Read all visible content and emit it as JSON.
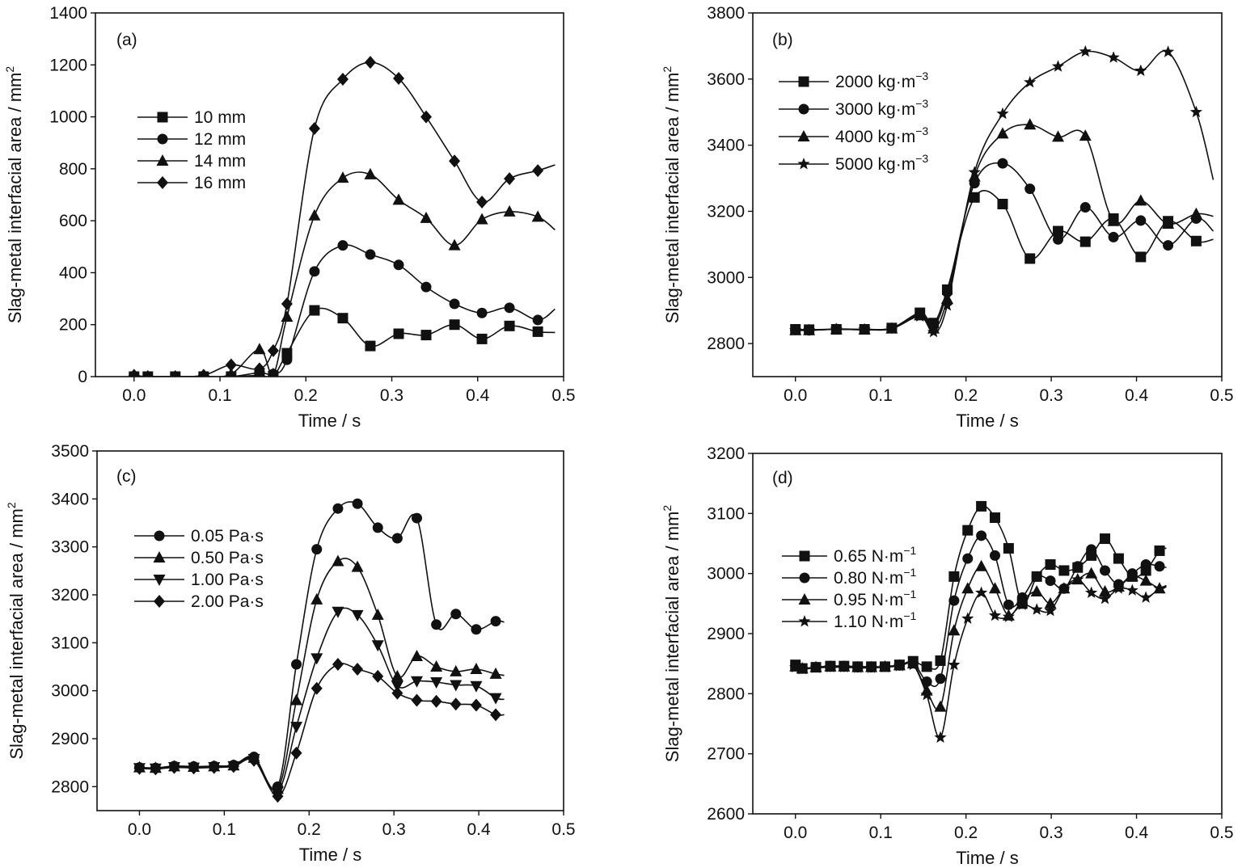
{
  "chart_data": [
    {
      "type": "line",
      "panel_label": "(a)",
      "xlabel": "Time / s",
      "ylabel": "Slag-metal interfacial area / mm",
      "ylabel_sup": "2",
      "xlim": [
        -0.045,
        0.5
      ],
      "ylim": [
        0,
        1400
      ],
      "xticks": [
        "0.0",
        "0.1",
        "0.2",
        "0.3",
        "0.4",
        "0.5"
      ],
      "yticks": [
        "0",
        "200",
        "400",
        "600",
        "800",
        "1000",
        "1200",
        "1400"
      ],
      "legend": "upper-left",
      "series": [
        {
          "name": "10 mm",
          "marker": "square",
          "x": [
            0.0,
            0.016,
            0.048,
            0.081,
            0.113,
            0.146,
            0.162,
            0.178,
            0.21,
            0.243,
            0.275,
            0.308,
            0.34,
            0.373,
            0.405,
            0.437,
            0.47,
            0.49
          ],
          "y": [
            0,
            0,
            0,
            0,
            0,
            5,
            2,
            90,
            255,
            225,
            118,
            165,
            160,
            200,
            145,
            195,
            173,
            170
          ]
        },
        {
          "name": "12 mm",
          "marker": "circle",
          "x": [
            0.0,
            0.016,
            0.048,
            0.081,
            0.113,
            0.146,
            0.162,
            0.178,
            0.21,
            0.243,
            0.275,
            0.308,
            0.34,
            0.373,
            0.405,
            0.437,
            0.47,
            0.49
          ],
          "y": [
            0,
            0,
            0,
            0,
            0,
            15,
            10,
            65,
            405,
            505,
            470,
            430,
            345,
            280,
            245,
            265,
            218,
            260
          ]
        },
        {
          "name": "14 mm",
          "marker": "triangle-up",
          "x": [
            0.0,
            0.016,
            0.048,
            0.081,
            0.113,
            0.146,
            0.162,
            0.178,
            0.21,
            0.243,
            0.275,
            0.308,
            0.34,
            0.373,
            0.405,
            0.437,
            0.47,
            0.49
          ],
          "y": [
            0,
            0,
            0,
            0,
            10,
            105,
            10,
            230,
            620,
            765,
            778,
            680,
            610,
            505,
            605,
            635,
            615,
            565
          ]
        },
        {
          "name": "16 mm",
          "marker": "diamond",
          "x": [
            0.0,
            0.016,
            0.048,
            0.081,
            0.113,
            0.146,
            0.162,
            0.178,
            0.21,
            0.243,
            0.275,
            0.308,
            0.34,
            0.373,
            0.405,
            0.437,
            0.47,
            0.49
          ],
          "y": [
            5,
            0,
            0,
            5,
            45,
            30,
            100,
            280,
            955,
            1145,
            1210,
            1148,
            1000,
            830,
            672,
            762,
            793,
            815
          ]
        }
      ]
    },
    {
      "type": "line",
      "panel_label": "(b)",
      "xlabel": "Time / s",
      "ylabel": "Slag-metal interfacial area / mm",
      "ylabel_sup": "2",
      "xlim": [
        -0.05,
        0.5
      ],
      "ylim": [
        2700,
        3800
      ],
      "xticks": [
        "0.0",
        "0.1",
        "0.2",
        "0.3",
        "0.4",
        "0.5"
      ],
      "yticks": [
        "2800",
        "3000",
        "3200",
        "3400",
        "3600",
        "3800"
      ],
      "legend": "upper-left",
      "series": [
        {
          "name": "2000 kg·m",
          "name_sup": "−3",
          "marker": "square",
          "x": [
            0.0,
            0.016,
            0.048,
            0.081,
            0.113,
            0.146,
            0.162,
            0.178,
            0.21,
            0.243,
            0.275,
            0.308,
            0.34,
            0.373,
            0.405,
            0.437,
            0.47,
            0.49
          ],
          "y": [
            2843,
            2842,
            2843,
            2843,
            2847,
            2893,
            2862,
            2963,
            3242,
            3222,
            3057,
            3140,
            3108,
            3178,
            3062,
            3170,
            3110,
            3115
          ]
        },
        {
          "name": "3000 kg·m",
          "name_sup": "−3",
          "marker": "circle",
          "x": [
            0.0,
            0.016,
            0.048,
            0.081,
            0.113,
            0.146,
            0.162,
            0.178,
            0.21,
            0.243,
            0.275,
            0.308,
            0.34,
            0.373,
            0.405,
            0.437,
            0.47,
            0.49
          ],
          "y": [
            2841,
            2840,
            2844,
            2843,
            2846,
            2888,
            2855,
            2955,
            3285,
            3345,
            3268,
            3115,
            3212,
            3122,
            3172,
            3097,
            3178,
            3140
          ]
        },
        {
          "name": "4000 kg·m",
          "name_sup": "−3",
          "marker": "triangle-up",
          "x": [
            0.0,
            0.016,
            0.048,
            0.081,
            0.113,
            0.146,
            0.162,
            0.178,
            0.21,
            0.243,
            0.275,
            0.308,
            0.34,
            0.373,
            0.405,
            0.437,
            0.47,
            0.49
          ],
          "y": [
            2840,
            2840,
            2843,
            2842,
            2845,
            2885,
            2845,
            2935,
            3305,
            3435,
            3462,
            3425,
            3428,
            3170,
            3232,
            3162,
            3192,
            3185
          ]
        },
        {
          "name": "5000 kg·m",
          "name_sup": "−3",
          "marker": "star",
          "x": [
            0.0,
            0.016,
            0.048,
            0.081,
            0.113,
            0.146,
            0.162,
            0.178,
            0.21,
            0.243,
            0.275,
            0.308,
            0.34,
            0.373,
            0.405,
            0.437,
            0.47,
            0.49
          ],
          "y": [
            2840,
            2840,
            2843,
            2842,
            2845,
            2882,
            2835,
            2915,
            3318,
            3495,
            3590,
            3638,
            3683,
            3665,
            3625,
            3682,
            3500,
            3295
          ]
        }
      ]
    },
    {
      "type": "line",
      "panel_label": "(c)",
      "xlabel": "Time / s",
      "ylabel": "Slag-metal interfacial area / mm",
      "ylabel_sup": "2",
      "xlim": [
        -0.05,
        0.5
      ],
      "ylim": [
        2750,
        3500
      ],
      "xticks": [
        "0.0",
        "0.1",
        "0.2",
        "0.3",
        "0.4",
        "0.5"
      ],
      "yticks": [
        "2800",
        "2900",
        "3000",
        "3100",
        "3200",
        "3300",
        "3400",
        "3500"
      ],
      "legend": "upper-left",
      "series": [
        {
          "name": "0.05 Pa·s",
          "marker": "circle",
          "x": [
            0.0,
            0.019,
            0.041,
            0.064,
            0.088,
            0.111,
            0.135,
            0.163,
            0.185,
            0.209,
            0.234,
            0.257,
            0.281,
            0.304,
            0.327,
            0.35,
            0.373,
            0.397,
            0.42,
            0.43
          ],
          "y": [
            2840,
            2839,
            2843,
            2842,
            2843,
            2845,
            2862,
            2800,
            3055,
            3295,
            3380,
            3390,
            3340,
            3318,
            3360,
            3138,
            3160,
            3128,
            3145,
            3143
          ]
        },
        {
          "name": "0.50 Pa·s",
          "marker": "triangle-up",
          "x": [
            0.0,
            0.019,
            0.041,
            0.064,
            0.088,
            0.111,
            0.135,
            0.163,
            0.185,
            0.209,
            0.234,
            0.257,
            0.281,
            0.304,
            0.327,
            0.35,
            0.373,
            0.397,
            0.42,
            0.43
          ],
          "y": [
            2840,
            2839,
            2842,
            2841,
            2842,
            2844,
            2860,
            2795,
            2980,
            3190,
            3270,
            3258,
            3158,
            3030,
            3072,
            3050,
            3040,
            3045,
            3035,
            3032
          ]
        },
        {
          "name": "1.00 Pa·s",
          "marker": "triangle-down",
          "x": [
            0.0,
            0.019,
            0.041,
            0.064,
            0.088,
            0.111,
            0.135,
            0.163,
            0.185,
            0.209,
            0.234,
            0.257,
            0.281,
            0.304,
            0.327,
            0.35,
            0.373,
            0.397,
            0.42,
            0.43
          ],
          "y": [
            2839,
            2838,
            2841,
            2840,
            2841,
            2843,
            2858,
            2790,
            2925,
            3068,
            3165,
            3158,
            3095,
            3010,
            3020,
            3018,
            3012,
            3010,
            2985,
            2982
          ]
        },
        {
          "name": "2.00 Pa·s",
          "marker": "diamond",
          "x": [
            0.0,
            0.019,
            0.041,
            0.064,
            0.088,
            0.111,
            0.135,
            0.163,
            0.185,
            0.209,
            0.234,
            0.257,
            0.281,
            0.304,
            0.327,
            0.35,
            0.373,
            0.397,
            0.42,
            0.43
          ],
          "y": [
            2838,
            2837,
            2840,
            2839,
            2840,
            2842,
            2855,
            2780,
            2870,
            3005,
            3055,
            3045,
            3030,
            2995,
            2980,
            2978,
            2972,
            2970,
            2950,
            2950
          ]
        }
      ]
    },
    {
      "type": "line",
      "panel_label": "(d)",
      "xlabel": "Time / s",
      "ylabel": "Slag-metal interfacial area / mm",
      "ylabel_sup": "2",
      "xlim": [
        -0.05,
        0.5
      ],
      "ylim": [
        2600,
        3200
      ],
      "xticks": [
        "0.0",
        "0.1",
        "0.2",
        "0.3",
        "0.4",
        "0.5"
      ],
      "yticks": [
        "2600",
        "2700",
        "2800",
        "2900",
        "3000",
        "3100",
        "3200"
      ],
      "legend": "center-left",
      "series": [
        {
          "name": "0.65 N·m",
          "name_sup": "−1",
          "marker": "square",
          "x": [
            0.0,
            0.008,
            0.024,
            0.041,
            0.057,
            0.073,
            0.089,
            0.105,
            0.122,
            0.138,
            0.154,
            0.17,
            0.186,
            0.202,
            0.218,
            0.234,
            0.25,
            0.266,
            0.283,
            0.299,
            0.315,
            0.331,
            0.347,
            0.363,
            0.379,
            0.395,
            0.411,
            0.427,
            0.435
          ],
          "y": [
            2848,
            2842,
            2844,
            2846,
            2846,
            2845,
            2845,
            2845,
            2848,
            2854,
            2845,
            2855,
            2995,
            3072,
            3112,
            3093,
            3042,
            2950,
            2995,
            3015,
            3005,
            3010,
            3030,
            3058,
            3025,
            2995,
            3005,
            3038,
            3042
          ]
        },
        {
          "name": "0.80 N·m",
          "name_sup": "−1",
          "marker": "circle",
          "x": [
            0.0,
            0.008,
            0.024,
            0.041,
            0.057,
            0.073,
            0.089,
            0.105,
            0.122,
            0.138,
            0.154,
            0.17,
            0.186,
            0.202,
            0.218,
            0.234,
            0.25,
            0.266,
            0.283,
            0.299,
            0.315,
            0.331,
            0.347,
            0.363,
            0.379,
            0.395,
            0.411,
            0.427,
            0.435
          ],
          "y": [
            2846,
            2842,
            2844,
            2845,
            2845,
            2844,
            2844,
            2845,
            2847,
            2852,
            2820,
            2825,
            2955,
            3025,
            3063,
            3030,
            2948,
            2960,
            2995,
            2988,
            2975,
            3012,
            3040,
            3005,
            2982,
            3000,
            3015,
            3012,
            3010
          ]
        },
        {
          "name": "0.95 N·m",
          "name_sup": "−1",
          "marker": "triangle-up",
          "x": [
            0.0,
            0.008,
            0.024,
            0.041,
            0.057,
            0.073,
            0.089,
            0.105,
            0.122,
            0.138,
            0.154,
            0.17,
            0.186,
            0.202,
            0.218,
            0.234,
            0.25,
            0.266,
            0.283,
            0.299,
            0.315,
            0.331,
            0.347,
            0.363,
            0.379,
            0.395,
            0.411,
            0.427,
            0.435
          ],
          "y": [
            2845,
            2842,
            2844,
            2845,
            2845,
            2844,
            2844,
            2845,
            2847,
            2850,
            2805,
            2778,
            2905,
            2975,
            3012,
            2975,
            2930,
            2955,
            2970,
            2950,
            2975,
            2990,
            3000,
            2970,
            2978,
            2995,
            2988,
            2975,
            2978
          ]
        },
        {
          "name": "1.10 N·m",
          "name_sup": "−1",
          "marker": "star",
          "x": [
            0.0,
            0.008,
            0.024,
            0.041,
            0.057,
            0.073,
            0.089,
            0.105,
            0.122,
            0.138,
            0.154,
            0.17,
            0.186,
            0.202,
            0.218,
            0.234,
            0.25,
            0.266,
            0.283,
            0.299,
            0.315,
            0.331,
            0.347,
            0.363,
            0.379,
            0.395,
            0.411,
            0.427,
            0.435
          ],
          "y": [
            2844,
            2841,
            2843,
            2844,
            2844,
            2843,
            2843,
            2844,
            2846,
            2848,
            2798,
            2727,
            2848,
            2925,
            2968,
            2930,
            2928,
            2948,
            2940,
            2938,
            2975,
            2990,
            2968,
            2958,
            2975,
            2972,
            2960,
            2975,
            2980
          ]
        }
      ]
    }
  ]
}
